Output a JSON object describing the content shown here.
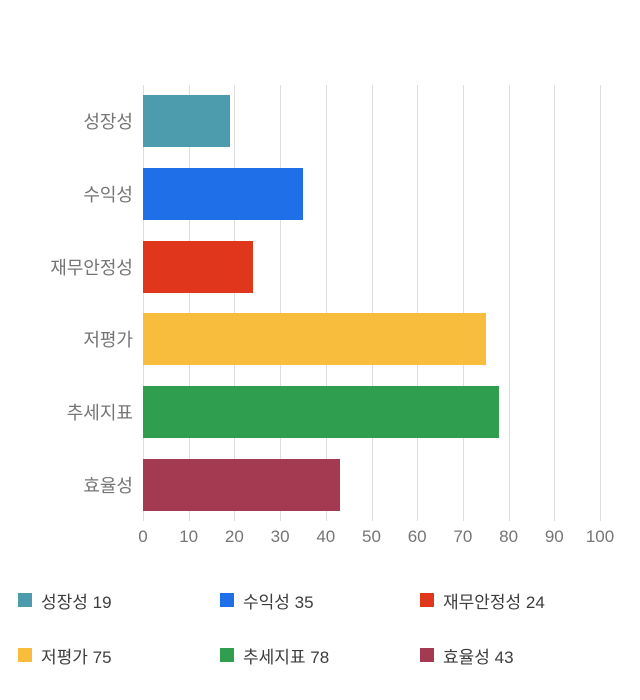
{
  "chart_data": {
    "type": "bar",
    "orientation": "horizontal",
    "title": "",
    "xlabel": "",
    "ylabel": "",
    "categories": [
      "성장성",
      "수익성",
      "재무안정성",
      "저평가",
      "추세지표",
      "효율성"
    ],
    "values": [
      19,
      35,
      24,
      75,
      78,
      43
    ],
    "colors": [
      "#4C9CAE",
      "#1E6FE8",
      "#E0371C",
      "#F9BD3D",
      "#2F9E4E",
      "#A43A52"
    ],
    "xlim": [
      0,
      100
    ],
    "x_ticks": [
      0,
      10,
      20,
      30,
      40,
      50,
      60,
      70,
      80,
      90,
      100
    ],
    "grid": true,
    "legend_position": "bottom",
    "legend_items": [
      {
        "label": "성장성",
        "value": 19,
        "color": "#4C9CAE"
      },
      {
        "label": "수익성",
        "value": 35,
        "color": "#1E6FE8"
      },
      {
        "label": "재무안정성",
        "value": 24,
        "color": "#E0371C"
      },
      {
        "label": "저평가",
        "value": 75,
        "color": "#F9BD3D"
      },
      {
        "label": "추세지표",
        "value": 78,
        "color": "#2F9E4E"
      },
      {
        "label": "효율성",
        "value": 43,
        "color": "#A43A52"
      }
    ]
  },
  "colors": {
    "background": "#ffffff",
    "grid_line": "#dddddd",
    "axis_text": "#757575",
    "legend_text": "#3d3d3d"
  }
}
